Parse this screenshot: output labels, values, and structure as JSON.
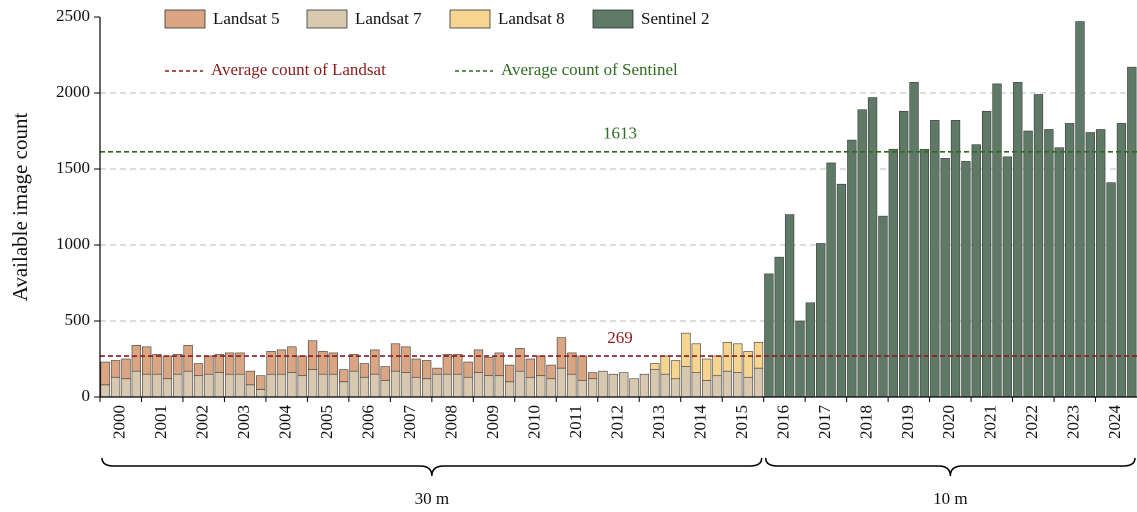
{
  "chart_data": {
    "type": "stacked_bar",
    "ylabel": "Available image count",
    "categories": [
      "2000",
      null,
      null,
      null,
      "2001",
      null,
      null,
      null,
      "2002",
      null,
      null,
      null,
      "2003",
      null,
      null,
      null,
      "2004",
      null,
      null,
      null,
      "2005",
      null,
      null,
      null,
      "2006",
      null,
      null,
      null,
      "2007",
      null,
      null,
      null,
      "2008",
      null,
      null,
      null,
      "2009",
      null,
      null,
      null,
      "2010",
      null,
      null,
      null,
      "2011",
      null,
      null,
      null,
      "2012",
      null,
      null,
      null,
      "2013",
      null,
      null,
      null,
      "2014",
      null,
      null,
      null,
      "2015",
      null,
      null,
      null,
      "2016",
      null,
      null,
      null,
      "2017",
      null,
      null,
      null,
      "2018",
      null,
      null,
      null,
      "2019",
      null,
      null,
      null,
      "2020",
      null,
      null,
      null,
      "2021",
      null,
      null,
      null,
      "2022",
      null,
      null,
      null,
      "2023",
      null,
      null,
      null,
      "2024",
      null,
      null,
      null
    ],
    "series": [
      {
        "name": "Landsat 5",
        "color": "#d9a582",
        "values": [
          150,
          110,
          130,
          170,
          180,
          130,
          150,
          130,
          170,
          80,
          120,
          120,
          140,
          140,
          90,
          90,
          150,
          160,
          170,
          130,
          190,
          150,
          140,
          80,
          110,
          90,
          160,
          90,
          180,
          170,
          120,
          120,
          40,
          130,
          130,
          100,
          150,
          120,
          150,
          110,
          150,
          120,
          130,
          90,
          200,
          140,
          160,
          40,
          null,
          null,
          null,
          null,
          null,
          null,
          null,
          null,
          null,
          null,
          null,
          null,
          null,
          null,
          null,
          null,
          null,
          null,
          null,
          null,
          null,
          null,
          null,
          null,
          null,
          null,
          null,
          null,
          null,
          null,
          null,
          null,
          null,
          null,
          null,
          null,
          null,
          null,
          null,
          null,
          null,
          null,
          null,
          null,
          null,
          null,
          null,
          null,
          null,
          null,
          null,
          null
        ]
      },
      {
        "name": "Landsat 7",
        "color": "#d9c8b0",
        "values": [
          80,
          130,
          120,
          170,
          150,
          150,
          120,
          150,
          170,
          140,
          150,
          160,
          150,
          150,
          80,
          50,
          150,
          150,
          160,
          140,
          180,
          150,
          150,
          100,
          170,
          130,
          150,
          110,
          170,
          160,
          130,
          120,
          150,
          150,
          150,
          130,
          160,
          140,
          140,
          100,
          170,
          130,
          140,
          120,
          190,
          150,
          110,
          120,
          170,
          150,
          160,
          120,
          150,
          180,
          150,
          120,
          200,
          160,
          110,
          140,
          170,
          160,
          130,
          190,
          null,
          null,
          null,
          null,
          null,
          null,
          null,
          null,
          null,
          null,
          null,
          null,
          null,
          null,
          null,
          null,
          null,
          null,
          null,
          null,
          null,
          null,
          null,
          null,
          null,
          null,
          null,
          null,
          null,
          null,
          null,
          null,
          null,
          null,
          null,
          null
        ]
      },
      {
        "name": "Landsat 8",
        "color": "#f5d58f",
        "values": [
          null,
          null,
          null,
          null,
          null,
          null,
          null,
          null,
          null,
          null,
          null,
          null,
          null,
          null,
          null,
          null,
          null,
          null,
          null,
          null,
          null,
          null,
          null,
          null,
          null,
          null,
          null,
          null,
          null,
          null,
          null,
          null,
          null,
          null,
          null,
          null,
          null,
          null,
          null,
          null,
          null,
          null,
          null,
          null,
          null,
          null,
          null,
          null,
          null,
          null,
          null,
          null,
          null,
          40,
          120,
          120,
          220,
          190,
          140,
          130,
          190,
          190,
          170,
          170,
          null,
          null,
          null,
          null,
          null,
          null,
          null,
          null,
          null,
          null,
          null,
          null,
          null,
          null,
          null,
          null,
          null,
          null,
          null,
          null,
          null,
          null,
          null,
          null,
          null,
          null,
          null,
          null,
          null,
          null,
          null,
          null,
          null,
          null,
          null,
          null
        ]
      },
      {
        "name": "Sentinel 2",
        "color": "#5e7a66",
        "values": [
          null,
          null,
          null,
          null,
          null,
          null,
          null,
          null,
          null,
          null,
          null,
          null,
          null,
          null,
          null,
          null,
          null,
          null,
          null,
          null,
          null,
          null,
          null,
          null,
          null,
          null,
          null,
          null,
          null,
          null,
          null,
          null,
          null,
          null,
          null,
          null,
          null,
          null,
          null,
          null,
          null,
          null,
          null,
          null,
          null,
          null,
          null,
          null,
          null,
          null,
          null,
          null,
          null,
          null,
          null,
          null,
          null,
          null,
          null,
          null,
          null,
          null,
          null,
          null,
          810,
          920,
          1200,
          500,
          620,
          1010,
          1540,
          1400,
          1690,
          1890,
          1970,
          1190,
          1630,
          1880,
          2070,
          1630,
          1820,
          1570,
          1820,
          1550,
          1660,
          1880,
          2060,
          1580,
          2070,
          1750,
          1990,
          1760,
          1640,
          1800,
          2470,
          1740,
          1760,
          1410,
          1800,
          2170
        ]
      }
    ],
    "average_lines": [
      {
        "name": "Average count of Landsat",
        "value": 269,
        "color": "#8b1a1a"
      },
      {
        "name": "Average count of Sentinel",
        "value": 1613,
        "color": "#2e6b1e"
      }
    ],
    "groups": [
      {
        "label": "30 m",
        "start": "2000",
        "end": "2015"
      },
      {
        "label": "10 m",
        "start": "2016",
        "end": "2024"
      }
    ],
    "ylim": [
      0,
      2500
    ],
    "yticks": [
      0,
      500,
      1000,
      1500,
      2000,
      2500
    ],
    "grid": true
  }
}
